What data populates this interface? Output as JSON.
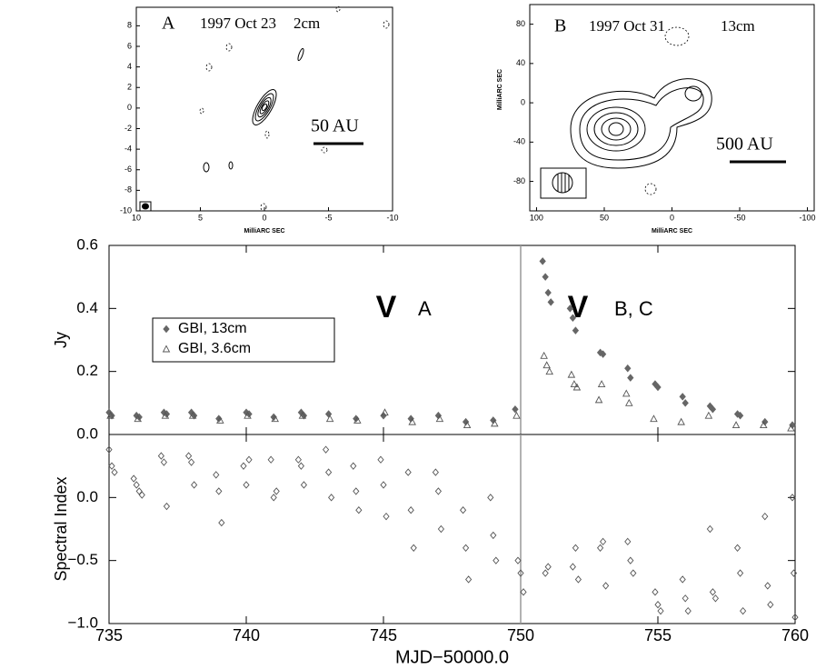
{
  "chart_data": [
    {
      "type": "contour",
      "label": "A",
      "date": "1997 Oct 23",
      "band": "2cm",
      "scale": "50 AU",
      "xlabel": "MilliARC SEC",
      "xlim": [
        10,
        -10
      ],
      "xticks": [
        10,
        5,
        0,
        -5,
        -10
      ],
      "ylim": [
        -10,
        9.8
      ],
      "yticks": [
        8,
        6,
        4,
        2,
        0,
        -2,
        -4,
        -6,
        -8,
        -10
      ]
    },
    {
      "type": "contour",
      "label": "B",
      "date": "1997 Oct 31",
      "band": "13cm",
      "scale": "500 AU",
      "xlabel": "MilliARC SEC",
      "ylabel": "MilliARC SEC",
      "xlim": [
        105,
        -105
      ],
      "xticks": [
        100,
        50,
        0,
        -50,
        -100
      ],
      "ylim": [
        -110,
        100
      ],
      "yticks": [
        80,
        40,
        0,
        -40,
        -80
      ]
    },
    {
      "type": "scatter",
      "ylabel": "Jy",
      "xlim": [
        735,
        760
      ],
      "ylim": [
        0,
        0.6
      ],
      "yticks": [
        {
          "value": 0,
          "label": "0.0"
        },
        {
          "value": 0.2,
          "label": "0.2"
        },
        {
          "value": 0.4,
          "label": "0.4"
        },
        {
          "value": 0.6,
          "label": "0.6"
        }
      ],
      "vline": 750,
      "annotations": [
        {
          "marker": "V",
          "text": "A"
        },
        {
          "marker": "V",
          "text": "B, C"
        }
      ],
      "series": [
        {
          "name": "GBI, 13cm",
          "marker": "filled-diamond",
          "color": "#666666",
          "x": [
            735.0,
            735.1,
            736.0,
            736.1,
            737.0,
            737.1,
            738.0,
            738.1,
            739.0,
            740.0,
            740.1,
            741.0,
            742.0,
            742.1,
            743.0,
            744.0,
            745.0,
            746.0,
            747.0,
            748.0,
            749.0,
            749.8,
            750.8,
            750.9,
            751.0,
            751.1,
            751.8,
            751.9,
            752.0,
            752.9,
            753.0,
            753.9,
            754.0,
            754.9,
            755.0,
            755.9,
            756.0,
            756.9,
            757.0,
            757.9,
            758.0,
            758.9,
            759.9
          ],
          "values": [
            0.07,
            0.06,
            0.06,
            0.055,
            0.07,
            0.065,
            0.07,
            0.06,
            0.05,
            0.07,
            0.065,
            0.055,
            0.07,
            0.06,
            0.065,
            0.05,
            0.06,
            0.05,
            0.06,
            0.04,
            0.045,
            0.08,
            0.55,
            0.5,
            0.45,
            0.42,
            0.4,
            0.37,
            0.33,
            0.26,
            0.255,
            0.21,
            0.18,
            0.16,
            0.15,
            0.12,
            0.1,
            0.09,
            0.08,
            0.065,
            0.06,
            0.04,
            0.03
          ]
        },
        {
          "name": "GBI, 3.6cm",
          "marker": "open-triangle",
          "color": "#555555",
          "x": [
            735.05,
            736.05,
            737.05,
            738.05,
            739.05,
            740.05,
            741.05,
            742.05,
            743.05,
            744.05,
            745.05,
            746.05,
            747.05,
            748.05,
            749.05,
            749.85,
            750.85,
            750.95,
            751.05,
            751.85,
            751.95,
            752.05,
            752.85,
            752.95,
            753.85,
            753.95,
            754.85,
            755.85,
            756.85,
            757.85,
            758.85,
            759.85
          ],
          "values": [
            0.06,
            0.05,
            0.06,
            0.06,
            0.045,
            0.06,
            0.05,
            0.06,
            0.05,
            0.045,
            0.07,
            0.04,
            0.05,
            0.03,
            0.035,
            0.06,
            0.25,
            0.22,
            0.2,
            0.19,
            0.16,
            0.15,
            0.11,
            0.16,
            0.13,
            0.1,
            0.05,
            0.04,
            0.06,
            0.03,
            0.03,
            0.02
          ]
        }
      ]
    },
    {
      "type": "scatter",
      "ylabel": "Spectral Index",
      "xlabel": "MJD−50000.0",
      "xlim": [
        735,
        760
      ],
      "ylim": [
        -1.0,
        0.5
      ],
      "xticks": [
        735,
        740,
        745,
        750,
        755,
        760
      ],
      "yticks": [
        {
          "value": -1.0,
          "label": "−1.0"
        },
        {
          "value": -0.5,
          "label": "−0.5"
        },
        {
          "value": 0,
          "label": "0.0"
        }
      ],
      "vline": 750,
      "series": [
        {
          "marker": "open-diamond",
          "color": "#555555",
          "x": [
            735.0,
            735.1,
            735.2,
            735.9,
            736.0,
            736.1,
            736.2,
            736.9,
            737.0,
            737.1,
            737.9,
            738.0,
            738.1,
            738.9,
            739.0,
            739.1,
            739.9,
            740.0,
            740.1,
            740.9,
            741.0,
            741.1,
            741.9,
            742.0,
            742.1,
            742.9,
            743.0,
            743.1,
            743.9,
            744.0,
            744.1,
            744.9,
            745.0,
            745.1,
            745.9,
            746.0,
            746.1,
            746.9,
            747.0,
            747.1,
            747.9,
            748.0,
            748.1,
            748.9,
            749.0,
            749.1,
            749.9,
            750.0,
            750.1,
            750.9,
            751.0,
            751.9,
            752.0,
            752.1,
            752.9,
            753.0,
            753.1,
            753.9,
            754.0,
            754.1,
            754.9,
            755.0,
            755.1,
            755.9,
            756.0,
            756.1,
            756.9,
            757.0,
            757.1,
            757.9,
            758.0,
            758.1,
            758.9,
            759.0,
            759.1,
            759.9,
            759.95,
            760.0
          ],
          "values": [
            0.38,
            0.25,
            0.2,
            0.15,
            0.1,
            0.05,
            0.02,
            0.33,
            0.28,
            -0.07,
            0.33,
            0.28,
            0.1,
            0.18,
            0.05,
            -0.2,
            0.25,
            0.1,
            0.3,
            0.3,
            0.0,
            0.05,
            0.3,
            0.25,
            0.1,
            0.38,
            0.2,
            0.0,
            0.25,
            0.05,
            -0.1,
            0.3,
            0.1,
            -0.15,
            0.2,
            -0.1,
            -0.4,
            0.2,
            0.05,
            -0.25,
            -0.1,
            -0.4,
            -0.65,
            0.0,
            -0.3,
            -0.5,
            -0.5,
            -0.6,
            -0.75,
            -0.6,
            -0.55,
            -0.55,
            -0.4,
            -0.65,
            -0.4,
            -0.35,
            -0.7,
            -0.35,
            -0.5,
            -0.6,
            -0.75,
            -0.85,
            -0.9,
            -0.65,
            -0.8,
            -0.9,
            -0.25,
            -0.75,
            -0.8,
            -0.4,
            -0.6,
            -0.9,
            -0.15,
            -0.7,
            -0.85,
            0.0,
            -0.6,
            -0.95
          ]
        }
      ]
    }
  ]
}
